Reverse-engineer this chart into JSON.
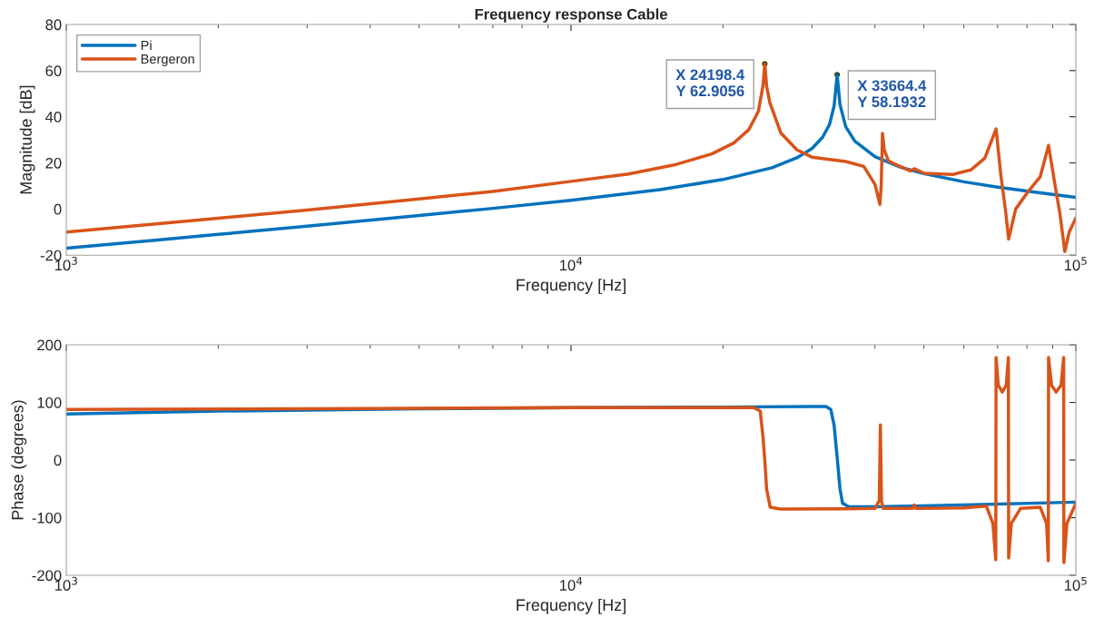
{
  "chart_data": [
    {
      "type": "line",
      "title": "Frequency response Cable",
      "xlabel": "Frequency [Hz]",
      "ylabel": "Magnitude [dB]",
      "log": "x",
      "legend": "top left",
      "xlim": [
        1000,
        100000
      ],
      "xticks": [
        {
          "value": 1000,
          "label": "10$^{3}$"
        },
        {
          "value": 10000,
          "label": "10$^{4}$"
        },
        {
          "value": 100000,
          "label": "10$^{5}$"
        }
      ],
      "ylim": [
        -20,
        80
      ],
      "yticks": [
        -20,
        0,
        20,
        40,
        60,
        80
      ],
      "series": [
        {
          "name": "Pi",
          "color": "#0072bd",
          "x": [
            1000,
            1500,
            2000,
            3000,
            5000,
            7000,
            10000,
            15000,
            20000,
            25000,
            28000,
            30000,
            31500,
            32500,
            33200,
            33664.4,
            34100,
            35000,
            36500,
            40000,
            45000,
            50000,
            60000,
            70000,
            85000,
            100000
          ],
          "values": [
            -17,
            -13.5,
            -11,
            -7.4,
            -2.8,
            0.3,
            3.8,
            8.4,
            12.8,
            17.9,
            22.2,
            26.2,
            31.1,
            36.6,
            44.7,
            58.2,
            45.3,
            35.7,
            29.4,
            22.7,
            18.1,
            15.4,
            11.8,
            9.5,
            7,
            5.1
          ]
        },
        {
          "name": "Bergeron",
          "color": "#d95319",
          "x": [
            1000,
            2000,
            3000,
            5000,
            7000,
            10000,
            13000,
            16000,
            19000,
            21000,
            22500,
            23500,
            24000,
            24198.4,
            24400,
            24770,
            26030,
            28000,
            30000,
            35000,
            38000,
            40000,
            40500,
            40900,
            41150,
            41400,
            41700,
            42500,
            43300,
            47000,
            47850,
            50000,
            57100,
            62000,
            66000,
            69500,
            71000,
            72500,
            73600,
            76000,
            80700,
            85000,
            88300,
            91000,
            93000,
            95100,
            97000,
            100000
          ],
          "values": [
            -10,
            -4,
            -0.4,
            4.4,
            7.6,
            12,
            15.2,
            19.1,
            23.9,
            28.6,
            34.4,
            42.3,
            53.4,
            62.9,
            53.2,
            46,
            33,
            25.7,
            22.5,
            20.6,
            18.5,
            10.7,
            6,
            2,
            10,
            32.8,
            26,
            21,
            20,
            16.5,
            17.5,
            15.5,
            15,
            17,
            22,
            34.7,
            15,
            0,
            -13,
            0,
            8,
            14,
            27.6,
            10,
            -2,
            -18.4,
            -10,
            -3.9
          ]
        }
      ],
      "annotations": [
        {
          "text": "X 24198.4\nY 62.9056",
          "x": 24198.4,
          "y": 62.9056
        },
        {
          "text": "X 33664.4\nY 58.1932",
          "x": 33664.4,
          "y": 58.1932
        }
      ]
    },
    {
      "type": "line",
      "xlabel": "Frequency [Hz]",
      "ylabel": "Phase (degrees)",
      "log": "x",
      "xlim": [
        1000,
        100000
      ],
      "xticks": [
        {
          "value": 1000,
          "label": "10$^{3}$"
        },
        {
          "value": 10000,
          "label": "10$^{4}$"
        },
        {
          "value": 100000,
          "label": "10$^{5}$"
        }
      ],
      "ylim": [
        -200,
        200
      ],
      "yticks": [
        -200,
        -100,
        0,
        100,
        200
      ],
      "series": [
        {
          "color": "#0072bd",
          "x": [
            1000,
            2000,
            5000,
            10000,
            20000,
            30000,
            32000,
            32700,
            33200,
            33664.4,
            34100,
            34500,
            35500,
            40000,
            60000,
            100000
          ],
          "values": [
            80,
            85,
            89,
            91,
            92,
            93,
            93,
            88,
            60,
            5,
            -50,
            -75,
            -81,
            -81,
            -78,
            -73
          ]
        },
        {
          "color": "#d95319",
          "x": [
            1000,
            3000,
            10000,
            20000,
            23000,
            23700,
            24000,
            24198.4,
            24400,
            24800,
            26000,
            35000,
            40000,
            40800,
            41000,
            41200,
            41500,
            47500,
            47850,
            48200,
            60000,
            66500,
            68500,
            69400,
            69500,
            70200,
            71500,
            72800,
            73500,
            73600,
            74500,
            77700,
            85000,
            87500,
            88200,
            88300,
            89500,
            91400,
            93500,
            94600,
            94700,
            96000,
            100000
          ],
          "values": [
            88,
            89,
            91,
            91,
            91,
            85,
            40,
            0,
            -50,
            -82,
            -85,
            -84.5,
            -84,
            -70,
            61,
            -70,
            -84,
            -84,
            -78,
            -84,
            -83,
            -80,
            -110,
            -173,
            178,
            130,
            118,
            130,
            178,
            -170,
            -110,
            -84,
            -82,
            -110,
            -175,
            178,
            130,
            118,
            130,
            178,
            -178,
            -110,
            -75
          ]
        }
      ]
    }
  ]
}
